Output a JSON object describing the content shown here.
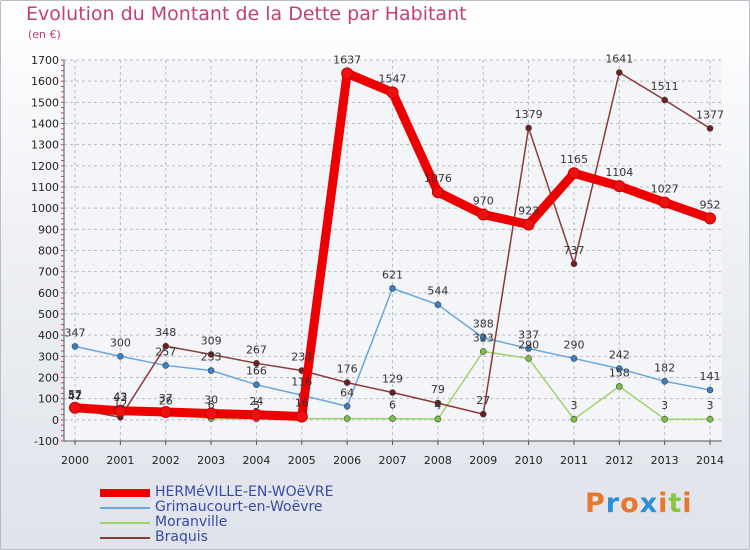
{
  "header": {
    "title": "Evolution du Montant de la Dette par Habitant",
    "subtitle": "(en €)"
  },
  "logo": {
    "text": "Proxiti",
    "letters": [
      "P",
      "r",
      "o",
      "x",
      "i",
      "t",
      "i"
    ],
    "colors": [
      "#e8762b",
      "#2b8fd8",
      "#e8762b",
      "#2b8fd8",
      "#e8762b",
      "#8cc63f",
      "#e8762b"
    ]
  },
  "chart_data": {
    "type": "line",
    "categories": [
      "2000",
      "2001",
      "2002",
      "2003",
      "2004",
      "2005",
      "2006",
      "2007",
      "2008",
      "2009",
      "2010",
      "2011",
      "2012",
      "2013",
      "2014"
    ],
    "ylim": [
      -100,
      1700
    ],
    "yticks": [
      -100,
      0,
      100,
      200,
      300,
      400,
      500,
      600,
      700,
      800,
      900,
      1000,
      1100,
      1200,
      1300,
      1400,
      1500,
      1600,
      1700
    ],
    "grid": true,
    "legend_position": "bottom-left",
    "series": [
      {
        "name": "HERMéVILLE-EN-WOëVRE",
        "color": "#ee0000",
        "marker_color": "#ee1111",
        "thick": true,
        "values": [
          57,
          43,
          37,
          30,
          24,
          16,
          1637,
          1547,
          1076,
          970,
          923,
          1165,
          1104,
          1027,
          952
        ],
        "labels": [
          "57",
          "43",
          "37",
          "30",
          "24",
          "16",
          "1637",
          "1547",
          "1076",
          "970",
          "923",
          "1165",
          "1104",
          "1027",
          "952"
        ]
      },
      {
        "name": "Grimaucourt-en-Woëvre",
        "color": "#6aa6dc",
        "marker_color": "#3b7fc4",
        "thick": false,
        "values": [
          347,
          300,
          257,
          233,
          166,
          116,
          64,
          621,
          544,
          388,
          337,
          290,
          242,
          182,
          141
        ],
        "labels": [
          "347",
          "300",
          "257",
          "233",
          "166",
          "116",
          "64",
          "621",
          "544",
          "388",
          "337",
          "290",
          "242",
          "182",
          "141"
        ]
      },
      {
        "name": "Moranville",
        "color": "#9ed46a",
        "marker_color": "#7cc242",
        "thick": false,
        "values": [
          47,
          42,
          26,
          6,
          5,
          6,
          6,
          6,
          4,
          323,
          290,
          3,
          158,
          3,
          3
        ],
        "labels": [
          "47",
          "42",
          "26",
          "6",
          "5",
          "",
          "",
          "6",
          "4",
          "323",
          "290",
          "3",
          "158",
          "3",
          "3"
        ]
      },
      {
        "name": "Braquis",
        "color": "#8a3a3a",
        "marker_color": "#6e1f1f",
        "thick": false,
        "values": [
          52,
          12,
          348,
          309,
          267,
          233,
          176,
          129,
          79,
          27,
          1379,
          737,
          1641,
          1511,
          1377
        ],
        "labels": [
          "52",
          "12",
          "348",
          "309",
          "267",
          "233",
          "176",
          "129",
          "79",
          "27",
          "1379",
          "737",
          "1641",
          "1511",
          "1377"
        ]
      }
    ]
  }
}
